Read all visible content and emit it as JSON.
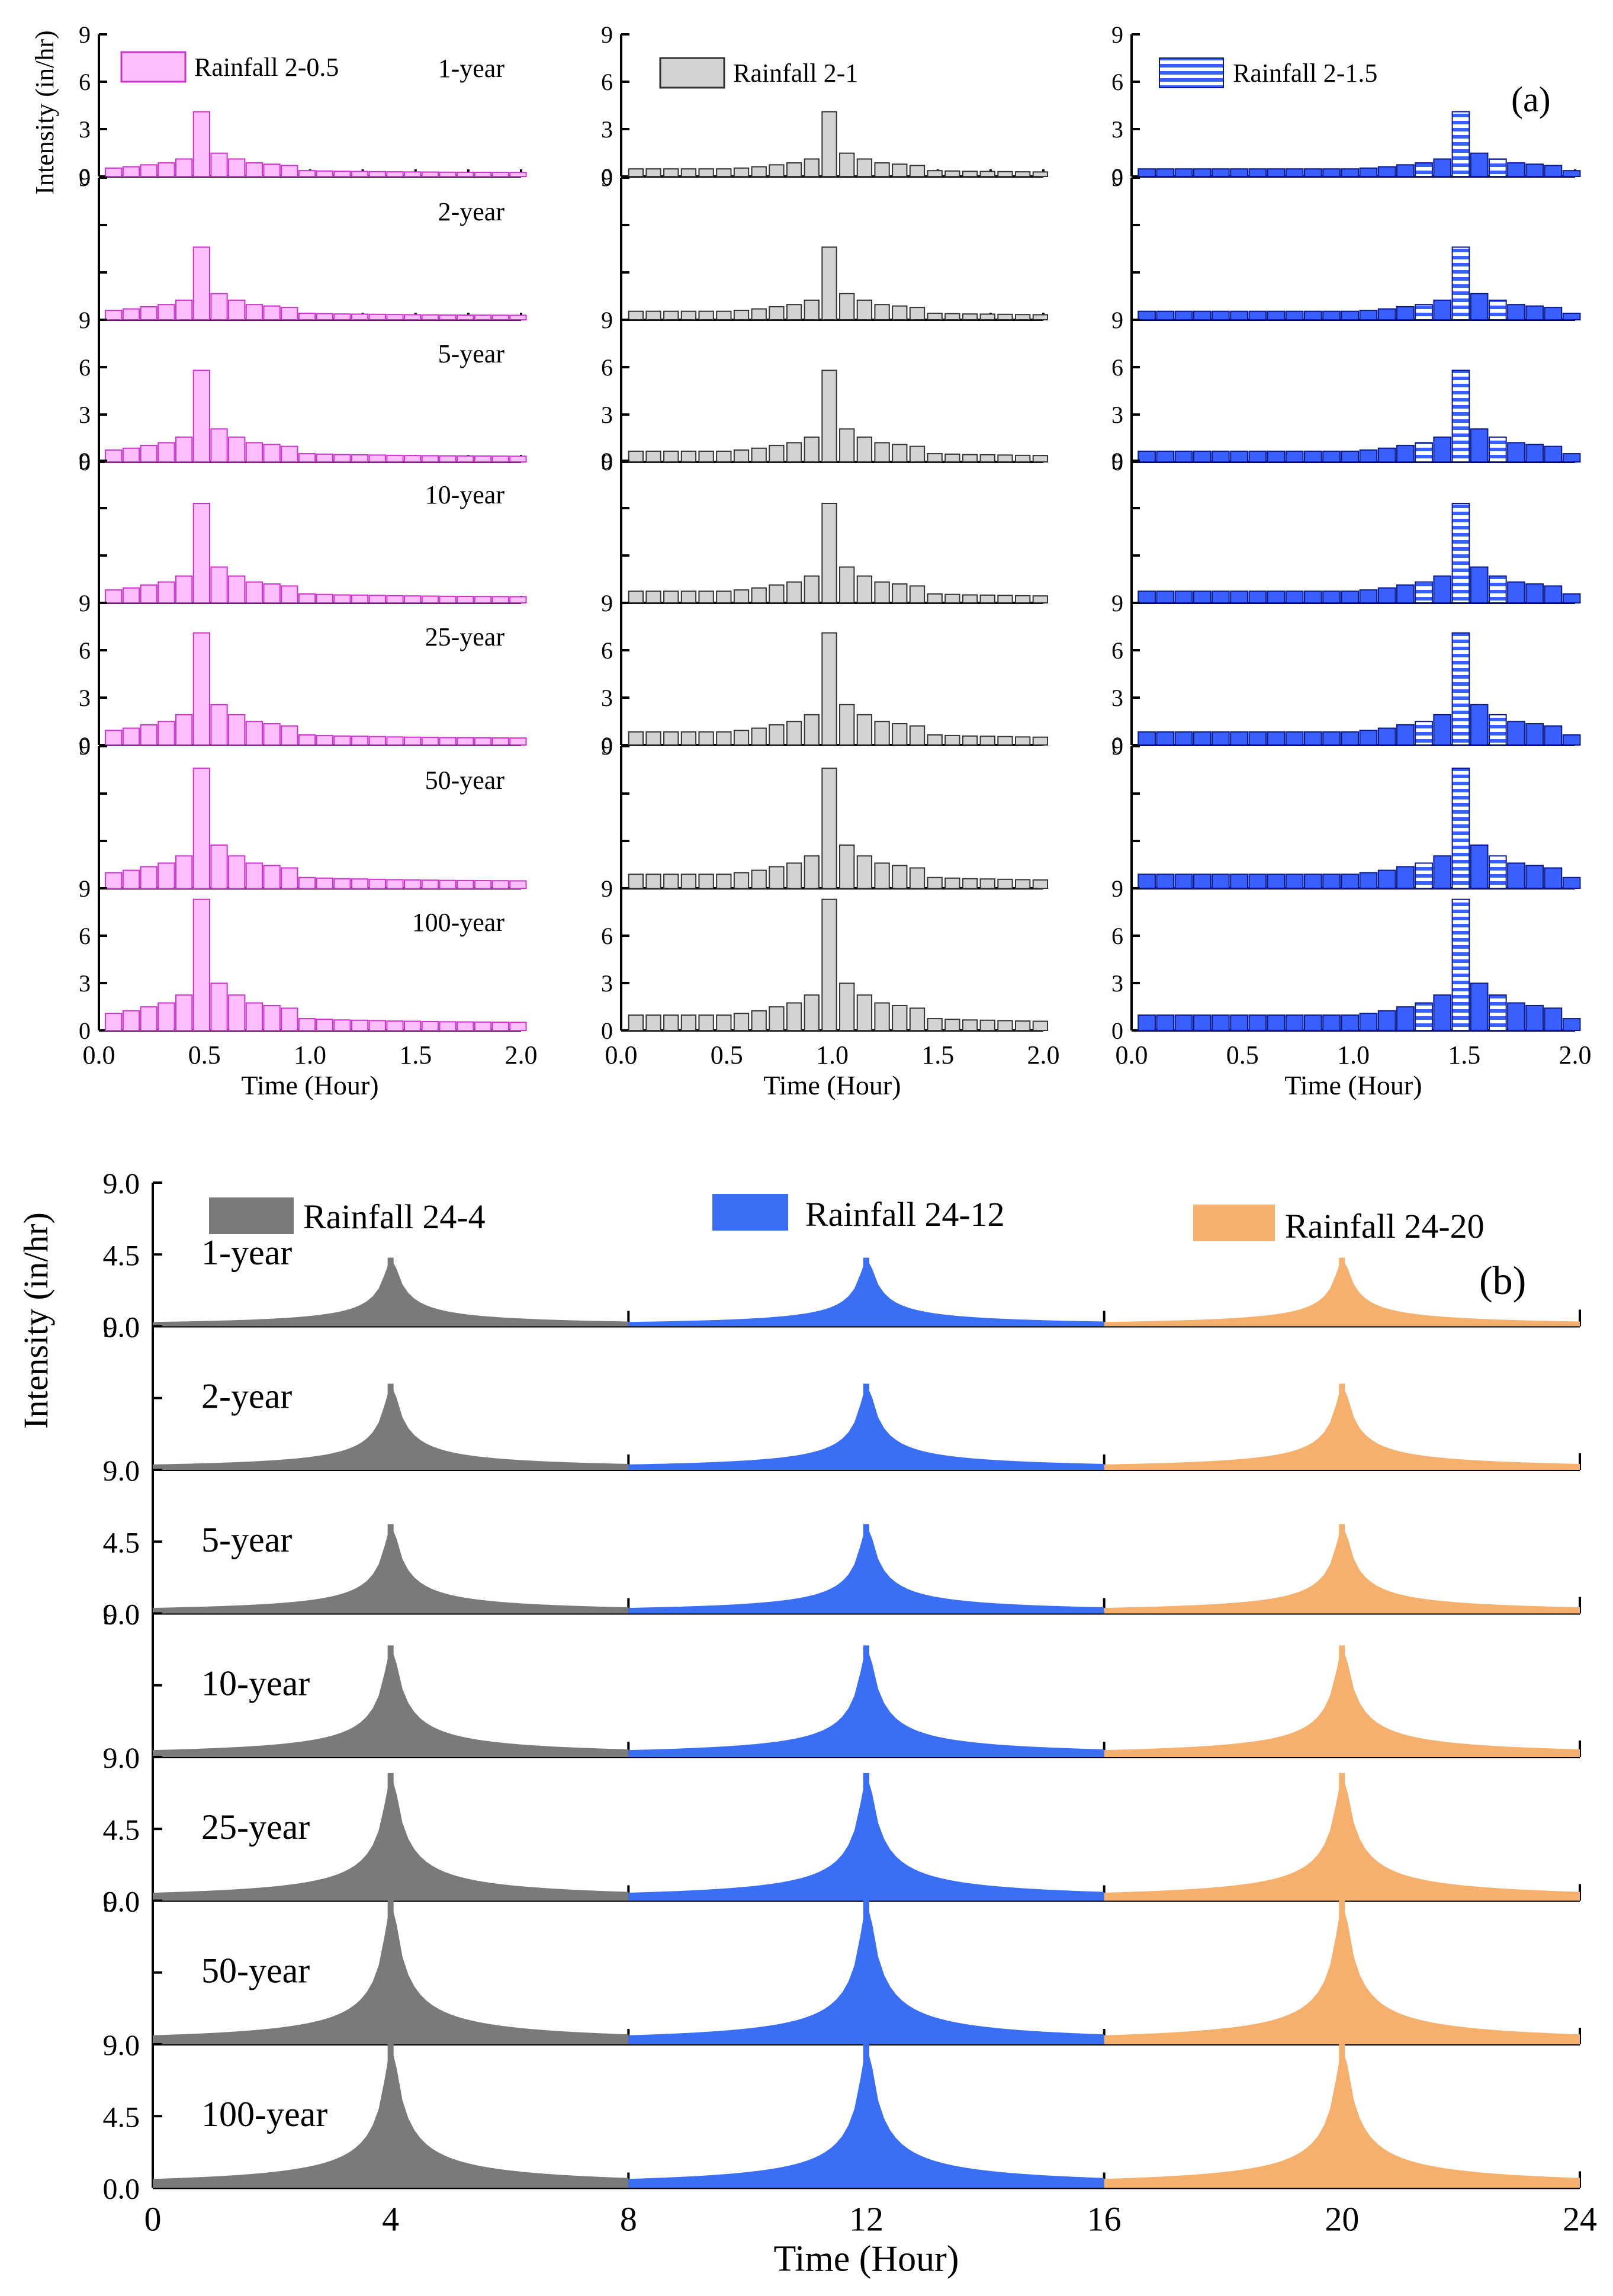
{
  "figure": {
    "panel_a_label": "(a)",
    "panel_b_label": "(b)"
  },
  "colors": {
    "pink_fill": "#ffbfff",
    "pink_edge": "#cc33cc",
    "gray_fill": "#d3d3d3",
    "gray_edge": "#333333",
    "blue_fill": "#3a5fff",
    "blue_edge": "#0a1a8a",
    "b_gray": "#7a7a7a",
    "b_blue": "#3a6ff5",
    "b_orange": "#f6b06e",
    "baseline_red": "#e07070"
  },
  "icons": {
    "legend_pink": "solid-pink-swatch",
    "legend_gray": "solid-gray-swatch",
    "legend_blue": "hatched-blue-swatch"
  },
  "chart_data": [
    {
      "id": "a",
      "type": "bar",
      "title": "",
      "ylabel": "Intensity (in/hr)",
      "xlabel": "Time (Hour)",
      "xlim": [
        0,
        2.0
      ],
      "ylim": [
        0,
        9
      ],
      "yticks": [
        "0",
        "3",
        "6",
        "9"
      ],
      "xticks": [
        "0.0",
        "0.5",
        "1.0",
        "1.5",
        "2.0"
      ],
      "return_periods": [
        "1-year",
        "2-year",
        "5-year",
        "10-year",
        "25-year",
        "50-year",
        "100-year"
      ],
      "peaks": [
        4.1,
        4.6,
        5.8,
        6.3,
        7.1,
        7.6,
        8.3
      ],
      "bin_hours": 0.0833,
      "base_profile": [
        0.13,
        0.15,
        0.18,
        0.21,
        0.27,
        1.0,
        0.36,
        0.27,
        0.21,
        0.19,
        0.17,
        0.09,
        0.085,
        0.08,
        0.078,
        0.075,
        0.072,
        0.07,
        0.068,
        0.066,
        0.065,
        0.064,
        0.063,
        0.062
      ],
      "series": [
        {
          "name": "Rainfall 2-0.5",
          "peak_hour": 0.5
        },
        {
          "name": "Rainfall 2-1",
          "peak_hour": 1.0
        },
        {
          "name": "Rainfall 2-1.5",
          "peak_hour": 1.5
        }
      ]
    },
    {
      "id": "b",
      "type": "area",
      "title": "",
      "ylabel": "Intensity (in/hr)",
      "xlabel": "Time (Hour)",
      "xlim": [
        0,
        24
      ],
      "ylim": [
        0,
        9.0
      ],
      "yticks": [
        "0.0",
        "4.5",
        "9.0"
      ],
      "xticks": [
        "0",
        "4",
        "8",
        "12",
        "16",
        "20",
        "24"
      ],
      "return_periods": [
        "1-year",
        "2-year",
        "5-year",
        "10-year",
        "25-year",
        "50-year",
        "100-year"
      ],
      "peaks": [
        4.3,
        5.4,
        5.6,
        7.0,
        8.0,
        9.0,
        9.0
      ],
      "series": [
        {
          "name": "Rainfall 24-4",
          "peak_hour": 4
        },
        {
          "name": "Rainfall 24-12",
          "peak_hour": 12
        },
        {
          "name": "Rainfall 24-20",
          "peak_hour": 20
        }
      ]
    }
  ]
}
